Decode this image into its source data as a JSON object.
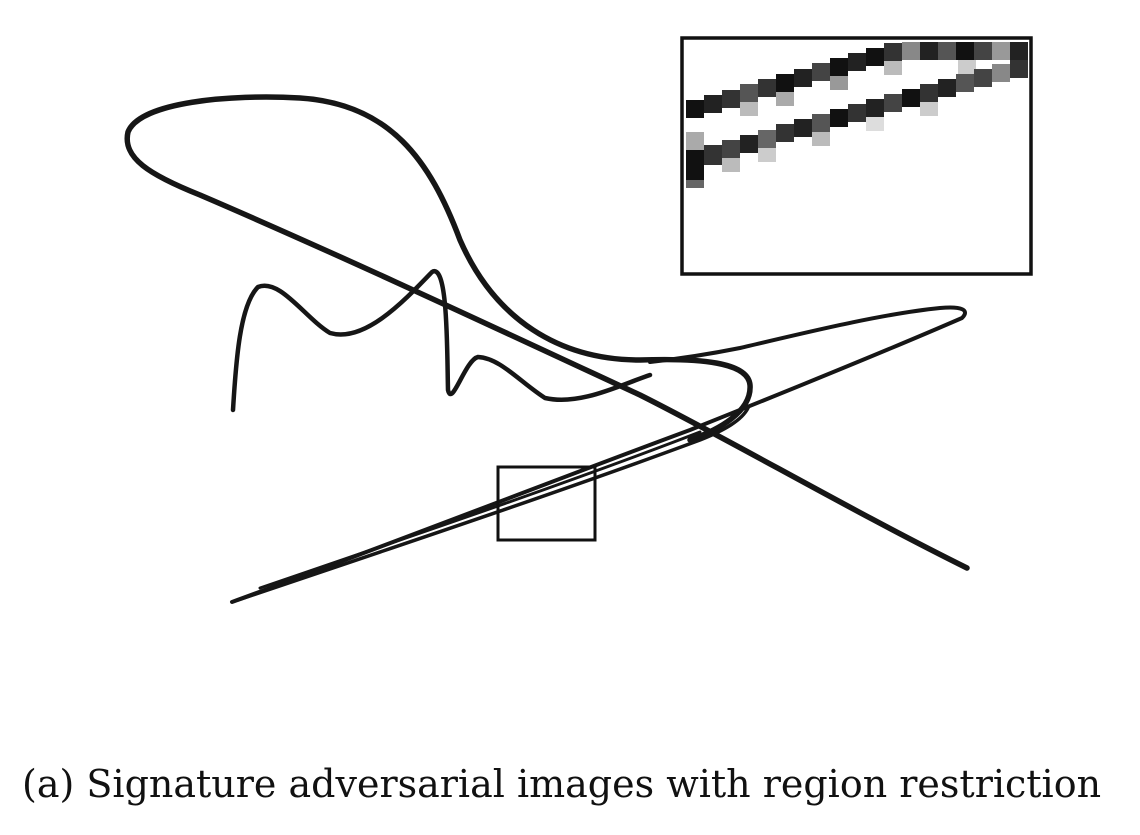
{
  "figure": {
    "caption": "(a) Signature adversarial images with region restriction",
    "colors": {
      "ink": "#161616",
      "frame": "#111111",
      "background": "#ffffff"
    }
  }
}
